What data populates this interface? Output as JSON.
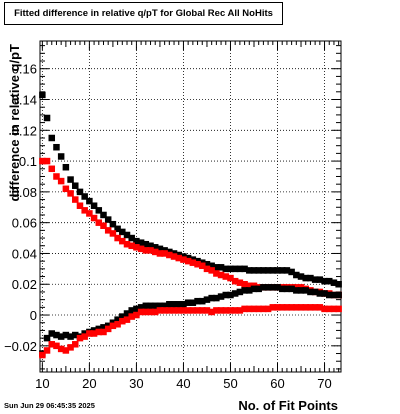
{
  "chart_data": {
    "type": "scatter",
    "title": "Fitted difference in relative q/pT for Global Rec All NoHits",
    "xlabel": "No. of Fit Points",
    "ylabel": "difference in relative q/pT",
    "xlim": [
      9.5,
      73.5
    ],
    "ylim": [
      -0.037,
      0.178
    ],
    "xticks": [
      10,
      20,
      30,
      40,
      50,
      60,
      70
    ],
    "yticks": [
      -0.02,
      0,
      0.02,
      0.04,
      0.06,
      0.08,
      0.1,
      0.12,
      0.14,
      0.16
    ],
    "ytick_labels": [
      "−0.02",
      "0",
      "0.02",
      "0.04",
      "0.06",
      "0.08",
      "0.1",
      "0.12",
      "0.14",
      "0.16"
    ],
    "grid": true,
    "series": [
      {
        "name": "",
        "color": "#000000",
        "x": [
          10,
          11,
          12,
          13,
          14,
          15,
          16,
          17,
          18,
          19,
          20,
          21,
          22,
          23,
          24,
          25,
          26,
          27,
          28,
          29,
          30,
          31,
          32,
          33,
          34,
          35,
          36,
          37,
          38,
          39,
          40,
          41,
          42,
          43,
          44,
          45,
          46,
          47,
          48,
          49,
          50,
          51,
          52,
          53,
          54,
          55,
          56,
          57,
          58,
          59,
          60,
          61,
          62,
          63,
          64,
          65,
          66,
          67,
          68,
          69,
          70,
          71,
          72,
          73
        ],
        "y": [
          0.143,
          0.128,
          0.115,
          0.109,
          0.103,
          0.096,
          0.088,
          0.084,
          0.08,
          0.077,
          0.074,
          0.071,
          0.068,
          0.065,
          0.062,
          0.059,
          0.056,
          0.054,
          0.052,
          0.05,
          0.048,
          0.047,
          0.046,
          0.045,
          0.044,
          0.043,
          0.042,
          0.041,
          0.04,
          0.039,
          0.038,
          0.037,
          0.036,
          0.035,
          0.034,
          0.033,
          0.032,
          0.031,
          0.031,
          0.03,
          0.03,
          0.03,
          0.03,
          0.03,
          0.029,
          0.029,
          0.029,
          0.029,
          0.029,
          0.029,
          0.029,
          0.029,
          0.029,
          0.028,
          0.026,
          0.025,
          0.024,
          0.024,
          0.023,
          0.023,
          0.022,
          0.022,
          0.021,
          0.02
        ]
      },
      {
        "name": "",
        "color": "#ff0000",
        "x": [
          10,
          11,
          12,
          13,
          14,
          15,
          16,
          17,
          18,
          19,
          20,
          21,
          22,
          23,
          24,
          25,
          26,
          27,
          28,
          29,
          30,
          31,
          32,
          33,
          34,
          35,
          36,
          37,
          38,
          39,
          40,
          41,
          42,
          43,
          44,
          45,
          46,
          47,
          48,
          49,
          50,
          51,
          52,
          53,
          54,
          55,
          56,
          57,
          58,
          59,
          60,
          61,
          62,
          63,
          64,
          65,
          66,
          67,
          68,
          69,
          70,
          71,
          72,
          73
        ],
        "y": [
          0.1,
          0.1,
          0.095,
          0.09,
          0.087,
          0.082,
          0.079,
          0.075,
          0.071,
          0.068,
          0.066,
          0.063,
          0.06,
          0.058,
          0.055,
          0.053,
          0.05,
          0.048,
          0.046,
          0.045,
          0.044,
          0.043,
          0.042,
          0.042,
          0.041,
          0.04,
          0.04,
          0.039,
          0.038,
          0.037,
          0.036,
          0.035,
          0.034,
          0.033,
          0.032,
          0.03,
          0.029,
          0.027,
          0.026,
          0.025,
          0.024,
          0.022,
          0.021,
          0.02,
          0.019,
          0.019,
          0.018,
          0.018,
          0.018,
          0.018,
          0.018,
          0.018,
          0.018,
          0.018,
          0.018,
          0.018,
          0.017,
          0.016,
          0.015,
          0.015,
          0.014,
          0.014,
          0.013,
          0.013
        ]
      },
      {
        "name": "",
        "color": "#000000",
        "x": [
          10,
          11,
          12,
          13,
          14,
          15,
          16,
          17,
          18,
          19,
          20,
          21,
          22,
          23,
          24,
          25,
          26,
          27,
          28,
          29,
          30,
          31,
          32,
          33,
          34,
          35,
          36,
          37,
          38,
          39,
          40,
          41,
          42,
          43,
          44,
          45,
          46,
          47,
          48,
          49,
          50,
          51,
          52,
          53,
          54,
          55,
          56,
          57,
          58,
          59,
          60,
          61,
          62,
          63,
          64,
          65,
          66,
          67,
          68,
          69,
          70,
          71,
          72,
          73
        ],
        "y": [
          -0.025,
          -0.015,
          -0.012,
          -0.013,
          -0.014,
          -0.013,
          -0.014,
          -0.013,
          -0.014,
          -0.012,
          -0.011,
          -0.01,
          -0.009,
          -0.008,
          -0.007,
          -0.005,
          -0.003,
          -0.001,
          0.001,
          0.003,
          0.004,
          0.005,
          0.006,
          0.006,
          0.006,
          0.006,
          0.006,
          0.007,
          0.007,
          0.007,
          0.007,
          0.008,
          0.008,
          0.009,
          0.009,
          0.01,
          0.011,
          0.011,
          0.012,
          0.013,
          0.013,
          0.014,
          0.015,
          0.016,
          0.016,
          0.017,
          0.017,
          0.018,
          0.018,
          0.018,
          0.018,
          0.017,
          0.017,
          0.017,
          0.016,
          0.016,
          0.016,
          0.015,
          0.015,
          0.014,
          0.014,
          0.013,
          0.013,
          0.013
        ]
      },
      {
        "name": "",
        "color": "#ff0000",
        "x": [
          10,
          11,
          12,
          13,
          14,
          15,
          16,
          17,
          18,
          19,
          20,
          21,
          22,
          23,
          24,
          25,
          26,
          27,
          28,
          29,
          30,
          31,
          32,
          33,
          34,
          35,
          36,
          37,
          38,
          39,
          40,
          41,
          42,
          43,
          44,
          45,
          46,
          47,
          48,
          49,
          50,
          51,
          52,
          53,
          54,
          55,
          56,
          57,
          58,
          59,
          60,
          61,
          62,
          63,
          64,
          65,
          66,
          67,
          68,
          69,
          70,
          71,
          72,
          73
        ],
        "y": [
          -0.026,
          -0.023,
          -0.019,
          -0.02,
          -0.022,
          -0.023,
          -0.021,
          -0.019,
          -0.015,
          -0.014,
          -0.012,
          -0.012,
          -0.011,
          -0.011,
          -0.009,
          -0.007,
          -0.006,
          -0.004,
          -0.003,
          -0.001,
          0.0,
          0.002,
          0.002,
          0.002,
          0.002,
          0.003,
          0.003,
          0.003,
          0.003,
          0.003,
          0.003,
          0.003,
          0.003,
          0.003,
          0.003,
          0.003,
          0.002,
          0.003,
          0.003,
          0.003,
          0.003,
          0.003,
          0.003,
          0.004,
          0.004,
          0.004,
          0.004,
          0.004,
          0.004,
          0.005,
          0.005,
          0.005,
          0.005,
          0.005,
          0.005,
          0.005,
          0.005,
          0.005,
          0.005,
          0.005,
          0.004,
          0.004,
          0.004,
          0.004
        ]
      }
    ]
  },
  "footer": {
    "date": "Sun Jun 29 06:45:35 2025"
  }
}
